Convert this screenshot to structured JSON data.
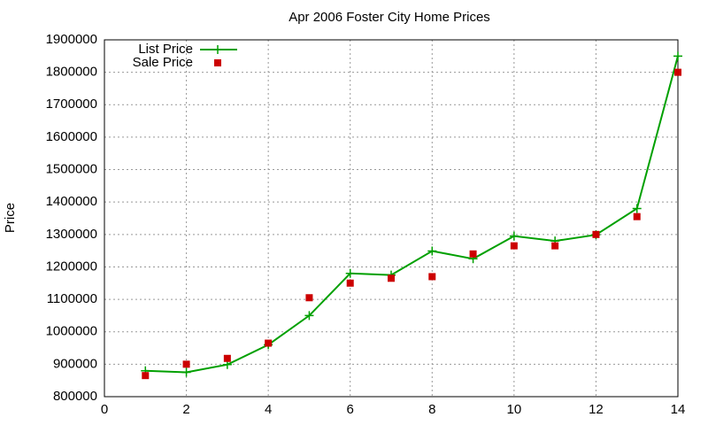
{
  "chart_data": {
    "type": "line",
    "title": "Apr 2006 Foster City Home Prices",
    "ylabel": "Price",
    "x": [
      1,
      2,
      3,
      4,
      5,
      6,
      7,
      8,
      9,
      10,
      11,
      12,
      13,
      14
    ],
    "series": [
      {
        "name": "List Price",
        "color": "#00a000",
        "style": "linespoints",
        "marker": "plus",
        "values": [
          880000,
          875000,
          899000,
          960000,
          1050000,
          1180000,
          1175000,
          1249000,
          1225000,
          1295000,
          1280000,
          1299000,
          1380000,
          1850000
        ]
      },
      {
        "name": "Sale Price",
        "color": "#cc0000",
        "style": "points",
        "marker": "square",
        "values": [
          865000,
          900000,
          918000,
          965000,
          1105000,
          1150000,
          1165000,
          1170000,
          1240000,
          1265000,
          1265000,
          1300000,
          1355000,
          1800000
        ]
      }
    ],
    "xlim": [
      0,
      14
    ],
    "xticks": [
      0,
      2,
      4,
      6,
      8,
      10,
      12,
      14
    ],
    "ylim": [
      800000,
      1900000
    ],
    "yticks": [
      800000,
      900000,
      1000000,
      1100000,
      1200000,
      1300000,
      1400000,
      1500000,
      1600000,
      1700000,
      1800000,
      1900000
    ],
    "grid": true,
    "legend": "top-left"
  }
}
